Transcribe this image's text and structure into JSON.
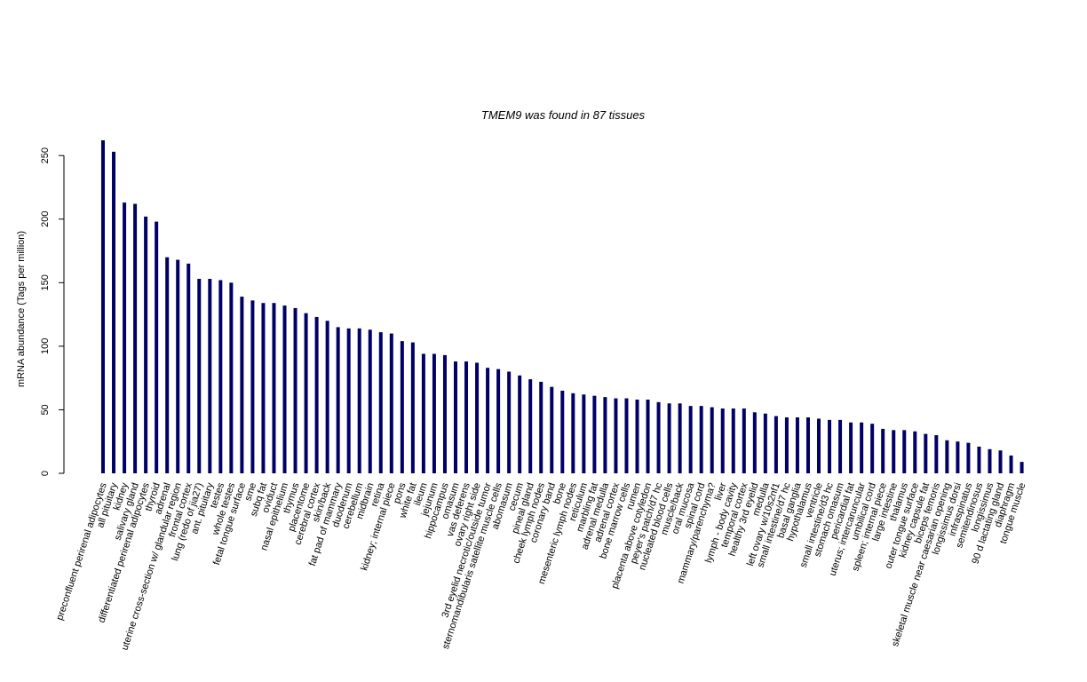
{
  "chart_data": {
    "type": "bar",
    "title": "TMEM9  was found in  87  tissues",
    "y_label": "mRNA abundance (Tags per million)",
    "color": "#000066",
    "ylim": [
      0,
      262
    ],
    "yticks": [
      0,
      50,
      100,
      150,
      200,
      250
    ],
    "categories": [
      "preconfluent perirenal adipocytes",
      "all pituitary",
      "kidney",
      "salivary gland",
      "differentiated perirenal adipocytes",
      "thyroid",
      "adrenal",
      "uterine cross-section w/ glandular region",
      "frontal cortex",
      "lung (redo of jia27)",
      "ant. pituitary",
      "testes",
      "whole testes",
      "fetal tongue surface",
      "sme",
      "subq fat",
      "oviduct",
      "nasal epithelium",
      "thymus",
      "placentome",
      "cerebral cortex",
      "skin/back",
      "fat pad of mammary",
      "duodenum",
      "cerebellum",
      "midbrain",
      "retina",
      "kidney; internal piece",
      "pons",
      "white fat",
      "ileum",
      "jejunum",
      "hippocampus",
      "omasum",
      "vas deferens",
      "ovary right side",
      "3rd eyelid necrotic/outside tumor",
      "sternomandibularis satellite muscle cells",
      "abomasum",
      "cecum",
      "pineal gland",
      "cheek lymph nodes",
      "coronary band",
      "bone",
      "mesenteric lymph nodes",
      "reticulum",
      "marbling fat",
      "adrenal medulla",
      "adrenal cortex",
      "bone marrow cells",
      "rumen",
      "placenta above cotyledon",
      "peyer's patch/d7 hc",
      "nucleated blood cells",
      "muscle/back",
      "oral mucosa",
      "spinal cord",
      "mammary/parenchyma?",
      "liver",
      "lymph - body cavity",
      "temporal cortex",
      "healthy 3rd eyelid",
      "medulla",
      "left ovary w/10s2nf1",
      "small intestine/d7 hc",
      "basal ganglia",
      "hypothalamus",
      "ventricle",
      "small intestine/d3 hc",
      "stomach omasum",
      "pericardial fat",
      "uterus; intercaruncular",
      "umbilical cord",
      "spleen; internal piece",
      "large intestine",
      "thalamus",
      "outer tongue surface",
      "kidney capsule fat",
      "biceps femoris",
      "skeletal muscle near caesarian opening",
      "longissimus dorsi",
      "infraspinatus",
      "semitendinosus",
      "longissimus",
      "90 d lactating gland",
      "diaphragm",
      "tongue muscle"
    ],
    "values": [
      262,
      253,
      213,
      212,
      202,
      198,
      170,
      168,
      165,
      153,
      153,
      152,
      150,
      139,
      136,
      134,
      134,
      132,
      130,
      126,
      123,
      120,
      115,
      114,
      114,
      113,
      111,
      110,
      104,
      103,
      94,
      94,
      93,
      88,
      88,
      87,
      83,
      82,
      80,
      77,
      74,
      72,
      68,
      65,
      63,
      62,
      61,
      60,
      59,
      59,
      58,
      58,
      56,
      55,
      55,
      53,
      53,
      52,
      51,
      51,
      51,
      48,
      47,
      45,
      44,
      44,
      44,
      43,
      42,
      42,
      40,
      40,
      39,
      35,
      34,
      34,
      33,
      31,
      30,
      26,
      25,
      24,
      21,
      19,
      18,
      14,
      9
    ]
  }
}
